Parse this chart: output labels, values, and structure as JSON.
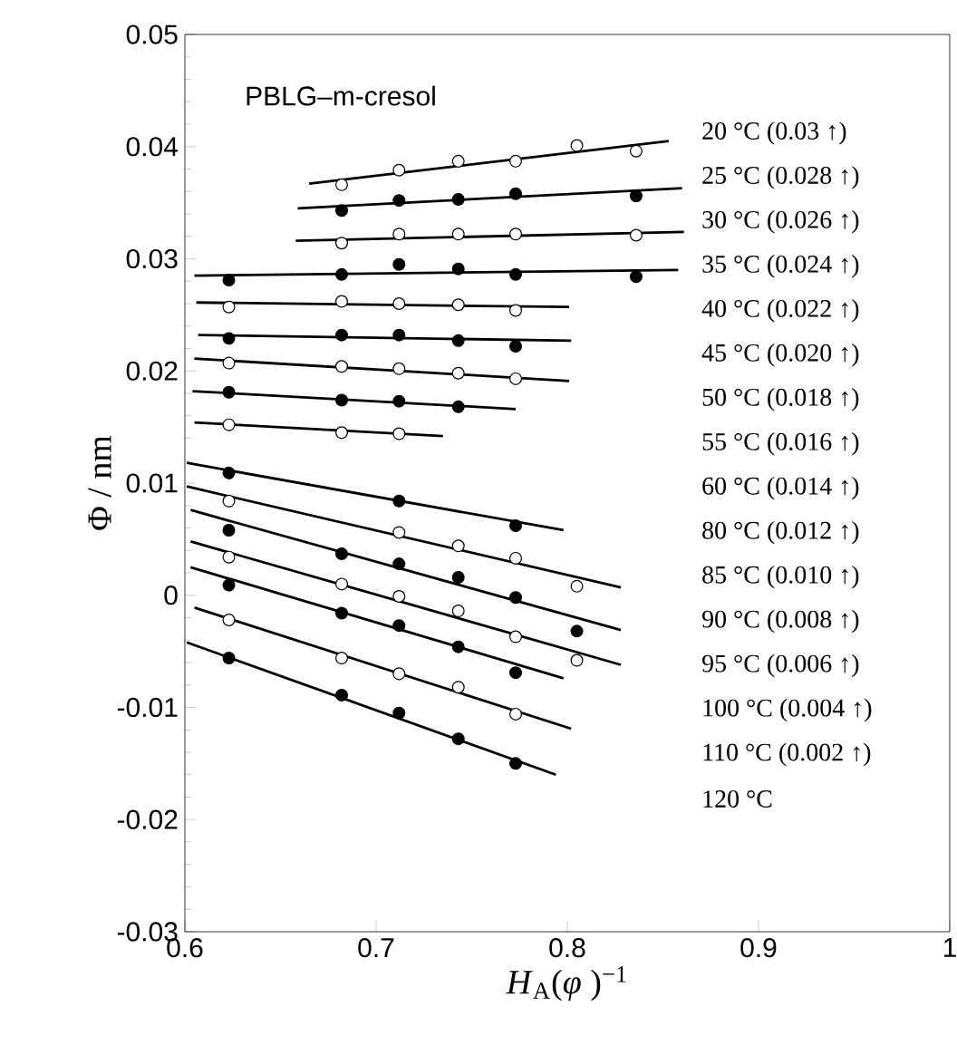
{
  "chart_data": {
    "type": "scatter",
    "xlabel": "*H*$_{A}$(*φ* )$^{−1}$",
    "ylabel": "Φ / nm",
    "annotations": [
      "PBLG–m-cresol"
    ],
    "xlim": [
      0.6,
      1
    ],
    "ylim": [
      -0.03,
      0.05
    ],
    "xticks": [
      0.6,
      0.7,
      0.8,
      0.9,
      1
    ],
    "yticks": [
      -0.03,
      -0.02,
      -0.01,
      0,
      0.01,
      0.02,
      0.03,
      0.04,
      0.05
    ],
    "marker": "circle",
    "series": [
      {
        "name": "20 °C (0.03 ↑)",
        "color": "#ffffff",
        "x": [
          0.682,
          0.712,
          0.743,
          0.773,
          0.805,
          0.836
        ],
        "values": [
          0.0366,
          0.0379,
          0.0387,
          0.0387,
          0.0401,
          0.0396
        ]
      },
      {
        "type": "line",
        "marker": "none",
        "color": "#000000",
        "x": [
          0.665,
          0.853
        ],
        "values": [
          0.0367,
          0.0405
        ]
      },
      {
        "name": "25 °C (0.028 ↑)",
        "color": "#000000",
        "x": [
          0.682,
          0.712,
          0.743,
          0.773,
          0.836
        ],
        "values": [
          0.0343,
          0.0352,
          0.0353,
          0.0358,
          0.0356
        ]
      },
      {
        "type": "line",
        "marker": "none",
        "color": "#000000",
        "x": [
          0.659,
          0.86
        ],
        "values": [
          0.0345,
          0.0363
        ]
      },
      {
        "name": "30 °C (0.026 ↑)",
        "color": "#ffffff",
        "x": [
          0.682,
          0.712,
          0.743,
          0.773,
          0.836
        ],
        "values": [
          0.0314,
          0.0322,
          0.0322,
          0.0322,
          0.0321
        ]
      },
      {
        "type": "line",
        "marker": "none",
        "color": "#000000",
        "x": [
          0.658,
          0.861
        ],
        "values": [
          0.0316,
          0.0324
        ]
      },
      {
        "name": "35 °C (0.024 ↑)",
        "color": "#000000",
        "x": [
          0.623,
          0.682,
          0.712,
          0.743,
          0.773,
          0.836
        ],
        "values": [
          0.0281,
          0.0286,
          0.0295,
          0.0291,
          0.0286,
          0.0284
        ]
      },
      {
        "type": "line",
        "marker": "none",
        "color": "#000000",
        "x": [
          0.605,
          0.858
        ],
        "values": [
          0.0285,
          0.029
        ]
      },
      {
        "name": "40 °C (0.022 ↑)",
        "color": "#ffffff",
        "x": [
          0.623,
          0.682,
          0.712,
          0.743,
          0.773
        ],
        "values": [
          0.0257,
          0.0262,
          0.026,
          0.0259,
          0.0254
        ]
      },
      {
        "type": "line",
        "marker": "none",
        "color": "#000000",
        "x": [
          0.606,
          0.801
        ],
        "values": [
          0.0261,
          0.0257
        ]
      },
      {
        "name": "45 °C (0.020 ↑)",
        "color": "#000000",
        "x": [
          0.623,
          0.682,
          0.712,
          0.743,
          0.773
        ],
        "values": [
          0.0229,
          0.0232,
          0.0232,
          0.0227,
          0.0222
        ]
      },
      {
        "type": "line",
        "marker": "none",
        "color": "#000000",
        "x": [
          0.607,
          0.802
        ],
        "values": [
          0.0232,
          0.0227
        ]
      },
      {
        "name": "50 °C (0.018 ↑)",
        "color": "#ffffff",
        "x": [
          0.623,
          0.682,
          0.712,
          0.743,
          0.773
        ],
        "values": [
          0.0207,
          0.0204,
          0.0202,
          0.0198,
          0.0193
        ]
      },
      {
        "type": "line",
        "marker": "none",
        "color": "#000000",
        "x": [
          0.605,
          0.801
        ],
        "values": [
          0.0211,
          0.0191
        ]
      },
      {
        "name": "55 °C (0.016 ↑)",
        "color": "#000000",
        "x": [
          0.623,
          0.682,
          0.712,
          0.743
        ],
        "values": [
          0.0181,
          0.0174,
          0.0173,
          0.0168
        ]
      },
      {
        "type": "line",
        "marker": "none",
        "color": "#000000",
        "x": [
          0.604,
          0.773
        ],
        "values": [
          0.0182,
          0.0166
        ]
      },
      {
        "name": "60 °C (0.014 ↑)",
        "color": "#ffffff",
        "x": [
          0.623,
          0.682,
          0.712
        ],
        "values": [
          0.0152,
          0.0145,
          0.0144
        ]
      },
      {
        "type": "line",
        "marker": "none",
        "color": "#000000",
        "x": [
          0.605,
          0.735
        ],
        "values": [
          0.0154,
          0.0142
        ]
      },
      {
        "name": "80 °C (0.012 ↑)",
        "color": "#000000",
        "x": [
          0.623,
          0.712,
          0.773
        ],
        "values": [
          0.0109,
          0.0084,
          0.0062
        ]
      },
      {
        "type": "line",
        "marker": "none",
        "color": "#000000",
        "x": [
          0.601,
          0.798
        ],
        "values": [
          0.0118,
          0.0058
        ]
      },
      {
        "name": "85 °C (0.010 ↑)",
        "color": "#ffffff",
        "x": [
          0.623,
          0.712,
          0.743,
          0.773,
          0.805
        ],
        "values": [
          0.0084,
          0.0056,
          0.0044,
          0.0033,
          0.0008
        ]
      },
      {
        "type": "line",
        "marker": "none",
        "color": "#000000",
        "x": [
          0.601,
          0.828
        ],
        "values": [
          0.0097,
          0.0007
        ]
      },
      {
        "name": "90 °C (0.008 ↑)",
        "color": "#000000",
        "x": [
          0.623,
          0.682,
          0.712,
          0.743,
          0.773,
          0.805
        ],
        "values": [
          0.0058,
          0.0037,
          0.0028,
          0.0016,
          -0.0002,
          -0.0032
        ]
      },
      {
        "type": "line",
        "marker": "none",
        "color": "#000000",
        "x": [
          0.603,
          0.828
        ],
        "values": [
          0.0076,
          -0.0031
        ]
      },
      {
        "name": "95 °C (0.006 ↑)",
        "color": "#ffffff",
        "x": [
          0.623,
          0.682,
          0.712,
          0.743,
          0.773,
          0.805
        ],
        "values": [
          0.0034,
          0.001,
          -0.0001,
          -0.0014,
          -0.0037,
          -0.0058
        ]
      },
      {
        "type": "line",
        "marker": "none",
        "color": "#000000",
        "x": [
          0.603,
          0.828
        ],
        "values": [
          0.0048,
          -0.0062
        ]
      },
      {
        "name": "100 °C (0.004 ↑)",
        "color": "#000000",
        "x": [
          0.623,
          0.682,
          0.712,
          0.743,
          0.773
        ],
        "values": [
          0.0009,
          -0.0016,
          -0.0027,
          -0.0046,
          -0.0069
        ]
      },
      {
        "type": "line",
        "marker": "none",
        "color": "#000000",
        "x": [
          0.603,
          0.798
        ],
        "values": [
          0.0025,
          -0.0074
        ]
      },
      {
        "name": "110 °C (0.002 ↑)",
        "color": "#ffffff",
        "x": [
          0.623,
          0.682,
          0.712,
          0.743,
          0.773
        ],
        "values": [
          -0.0022,
          -0.0056,
          -0.007,
          -0.0082,
          -0.0106
        ]
      },
      {
        "type": "line",
        "marker": "none",
        "color": "#000000",
        "x": [
          0.605,
          0.802
        ],
        "values": [
          -0.0011,
          -0.0119
        ]
      },
      {
        "name": "120 °C",
        "color": "#000000",
        "x": [
          0.623,
          0.682,
          0.712,
          0.743,
          0.773
        ],
        "values": [
          -0.0056,
          -0.0089,
          -0.0105,
          -0.0128,
          -0.015
        ]
      },
      {
        "type": "line",
        "marker": "none",
        "color": "#000000",
        "x": [
          0.601,
          0.794
        ],
        "values": [
          -0.0042,
          -0.016
        ]
      }
    ]
  }
}
